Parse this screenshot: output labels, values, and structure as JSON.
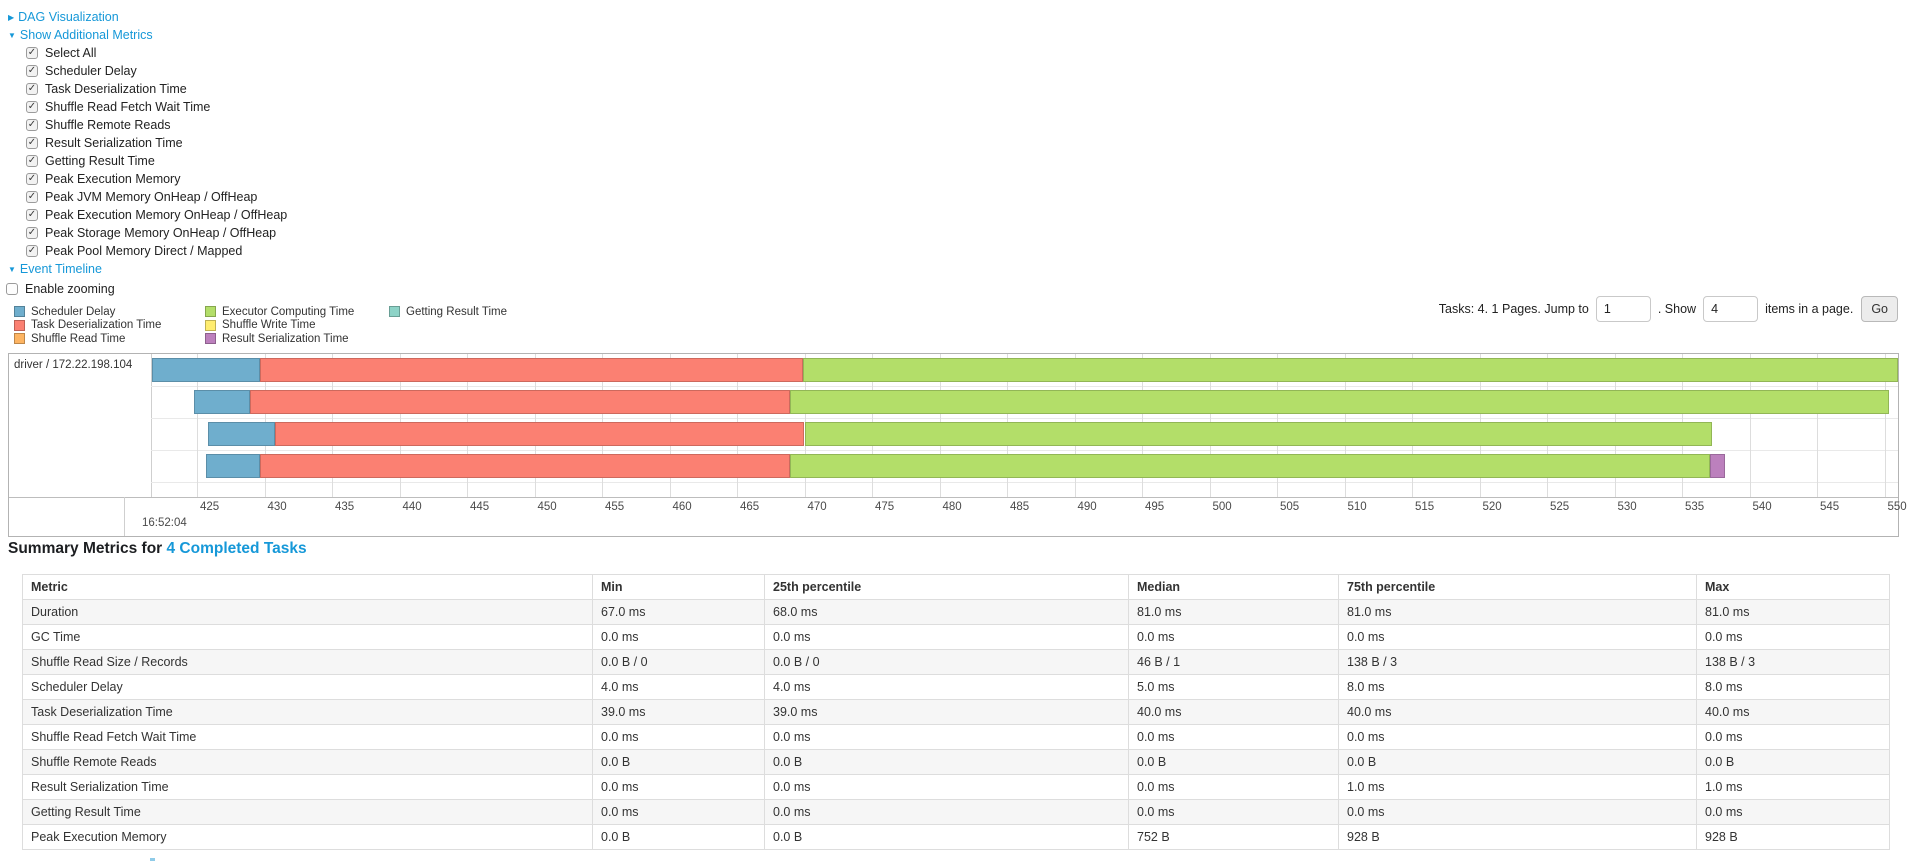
{
  "controls": {
    "dag_link": "DAG Visualization",
    "metrics_link": "Show Additional Metrics",
    "timeline_link": "Event Timeline",
    "enable_zooming_label": "Enable zooming",
    "metric_checkboxes": [
      "Select All",
      "Scheduler Delay",
      "Task Deserialization Time",
      "Shuffle Read Fetch Wait Time",
      "Shuffle Remote Reads",
      "Result Serialization Time",
      "Getting Result Time",
      "Peak Execution Memory",
      "Peak JVM Memory OnHeap / OffHeap",
      "Peak Execution Memory OnHeap / OffHeap",
      "Peak Storage Memory OnHeap / OffHeap",
      "Peak Pool Memory Direct / Mapped"
    ]
  },
  "pagination": {
    "tasks_text": "Tasks: 4. 1 Pages. Jump to",
    "jump_value": "1",
    "show_label": ". Show",
    "show_value": "4",
    "items_text": "items in a page.",
    "go_label": "Go"
  },
  "legend": [
    {
      "key": "scheduler_delay",
      "label": "Scheduler Delay"
    },
    {
      "key": "task_deserialization",
      "label": "Task Deserialization Time"
    },
    {
      "key": "shuffle_read",
      "label": "Shuffle Read Time"
    },
    {
      "key": "executor_computing",
      "label": "Executor Computing Time"
    },
    {
      "key": "shuffle_write",
      "label": "Shuffle Write Time"
    },
    {
      "key": "result_serialization",
      "label": "Result Serialization Time"
    },
    {
      "key": "getting_result",
      "label": "Getting Result Time"
    }
  ],
  "colors": {
    "scheduler_delay": "#6FAECD",
    "task_deserialization": "#FB8072",
    "shuffle_read": "#FDB462",
    "executor_computing": "#B3DE69",
    "shuffle_write": "#FFED6F",
    "result_serialization": "#BC80BD",
    "getting_result": "#8DD3C7",
    "link_blue": "#1698d8"
  },
  "chart_data": {
    "type": "timeline",
    "executor_label": "driver / 172.22.198.104",
    "x_axis": {
      "major_label": "16:52:04",
      "unit": "ms",
      "tick_step": 5,
      "tick_labels": [
        "425",
        "430",
        "435",
        "440",
        "445",
        "450",
        "455",
        "460",
        "465",
        "470",
        "475",
        "480",
        "485",
        "490",
        "495",
        "500",
        "505",
        "510",
        "515",
        "520",
        "525",
        "530",
        "535",
        "540",
        "545",
        "550"
      ]
    },
    "rows": [
      {
        "segments": [
          [
            "scheduler_delay",
            421.7,
            429.7
          ],
          [
            "task_deserialization",
            429.7,
            469.9
          ],
          [
            "executor_computing",
            469.9,
            551.0
          ]
        ]
      },
      {
        "segments": [
          [
            "scheduler_delay",
            424.8,
            428.9
          ],
          [
            "task_deserialization",
            428.9,
            468.9
          ],
          [
            "executor_computing",
            468.9,
            550.3
          ]
        ]
      },
      {
        "segments": [
          [
            "scheduler_delay",
            425.8,
            430.8
          ],
          [
            "task_deserialization",
            430.8,
            470.0
          ],
          [
            "executor_computing",
            470.0,
            537.2
          ]
        ]
      },
      {
        "segments": [
          [
            "scheduler_delay",
            425.7,
            429.7
          ],
          [
            "task_deserialization",
            429.7,
            468.9
          ],
          [
            "executor_computing",
            468.9,
            537.1
          ],
          [
            "result_serialization",
            537.1,
            538.2
          ]
        ]
      }
    ]
  },
  "summary": {
    "heading_prefix": "Summary Metrics for ",
    "heading_link": "4 Completed Tasks",
    "columns": [
      "Metric",
      "Min",
      "25th percentile",
      "Median",
      "75th percentile",
      "Max"
    ],
    "rows": [
      [
        "Duration",
        "67.0 ms",
        "68.0 ms",
        "81.0 ms",
        "81.0 ms",
        "81.0 ms"
      ],
      [
        "GC Time",
        "0.0 ms",
        "0.0 ms",
        "0.0 ms",
        "0.0 ms",
        "0.0 ms"
      ],
      [
        "Shuffle Read Size / Records",
        "0.0 B / 0",
        "0.0 B / 0",
        "46 B / 1",
        "138 B / 3",
        "138 B / 3"
      ],
      [
        "Scheduler Delay",
        "4.0 ms",
        "4.0 ms",
        "5.0 ms",
        "8.0 ms",
        "8.0 ms"
      ],
      [
        "Task Deserialization Time",
        "39.0 ms",
        "39.0 ms",
        "40.0 ms",
        "40.0 ms",
        "40.0 ms"
      ],
      [
        "Shuffle Read Fetch Wait Time",
        "0.0 ms",
        "0.0 ms",
        "0.0 ms",
        "0.0 ms",
        "0.0 ms"
      ],
      [
        "Shuffle Remote Reads",
        "0.0 B",
        "0.0 B",
        "0.0 B",
        "0.0 B",
        "0.0 B"
      ],
      [
        "Result Serialization Time",
        "0.0 ms",
        "0.0 ms",
        "0.0 ms",
        "1.0 ms",
        "1.0 ms"
      ],
      [
        "Getting Result Time",
        "0.0 ms",
        "0.0 ms",
        "0.0 ms",
        "0.0 ms",
        "0.0 ms"
      ],
      [
        "Peak Execution Memory",
        "0.0 B",
        "0.0 B",
        "752 B",
        "928 B",
        "928 B"
      ]
    ]
  }
}
